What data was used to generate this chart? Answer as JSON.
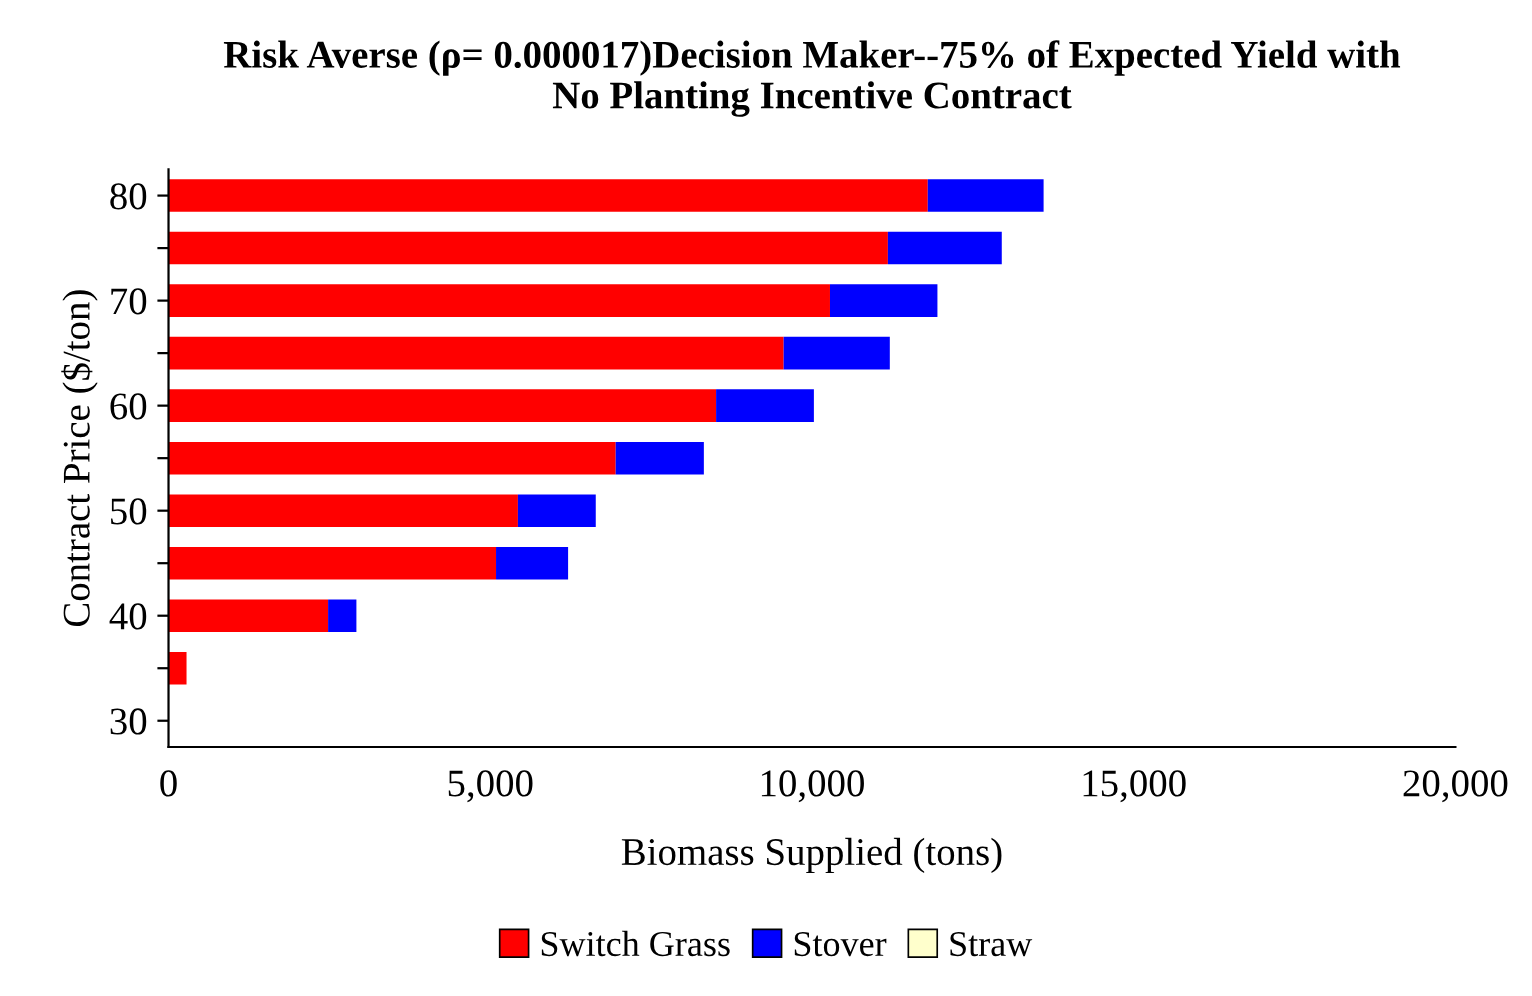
{
  "chart_data": {
    "type": "bar",
    "orientation": "horizontal",
    "stacked": true,
    "title": "Risk Averse (ρ= 0.000017)Decision Maker--75% of Expected Yield with\nNo Planting Incentive Contract",
    "xlabel": "Biomass Supplied (tons)",
    "ylabel": "Contract Price ($/ton)",
    "categories": [
      "80",
      null,
      "70",
      null,
      "60",
      null,
      "50",
      null,
      "40",
      null,
      "30"
    ],
    "series": [
      {
        "name": "Switch Grass",
        "color": "#ff0000",
        "values": [
          11800,
          11180,
          10280,
          9560,
          8510,
          6950,
          5430,
          5090,
          2480,
          280,
          0
        ]
      },
      {
        "name": "Stover",
        "color": "#0000ff",
        "values": [
          1800,
          1770,
          1670,
          1650,
          1520,
          1370,
          1210,
          1120,
          440,
          0,
          0
        ]
      },
      {
        "name": "Straw",
        "color": "#ffffcc",
        "values": [
          0,
          0,
          0,
          0,
          0,
          0,
          0,
          0,
          0,
          0,
          0
        ]
      }
    ],
    "xlim": [
      0,
      20000
    ],
    "xticks": [
      {
        "value": 0,
        "label": "0"
      },
      {
        "value": 5000,
        "label": "5,000"
      },
      {
        "value": 10000,
        "label": "10,000"
      },
      {
        "value": 15000,
        "label": "15,000"
      },
      {
        "value": 20000,
        "label": "20,000"
      }
    ],
    "grid": false,
    "legend": "bottom"
  }
}
